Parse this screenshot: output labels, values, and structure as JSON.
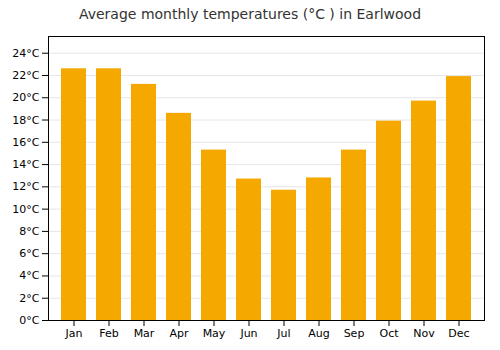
{
  "chart_data": {
    "type": "bar",
    "title": "Average monthly temperatures (°C ) in Earlwood",
    "categories": [
      "Jan",
      "Feb",
      "Mar",
      "Apr",
      "May",
      "Jun",
      "Jul",
      "Aug",
      "Sep",
      "Oct",
      "Nov",
      "Dec"
    ],
    "values": [
      22.6,
      22.6,
      21.2,
      18.6,
      15.3,
      12.7,
      11.7,
      12.8,
      15.3,
      17.9,
      19.7,
      21.9
    ],
    "color": "#F5A800",
    "ylim": [
      0,
      25.5
    ],
    "yticks": [
      {
        "value": 0,
        "label": "0°C"
      },
      {
        "value": 2,
        "label": "2°C"
      },
      {
        "value": 4,
        "label": "4°C"
      },
      {
        "value": 6,
        "label": "6°C"
      },
      {
        "value": 8,
        "label": "8°C"
      },
      {
        "value": 10,
        "label": "10°C"
      },
      {
        "value": 12,
        "label": "12°C"
      },
      {
        "value": 14,
        "label": "14°C"
      },
      {
        "value": 16,
        "label": "16°C"
      },
      {
        "value": 18,
        "label": "18°C"
      },
      {
        "value": 20,
        "label": "20°C"
      },
      {
        "value": 22,
        "label": "22°C"
      },
      {
        "value": 24,
        "label": "24°C"
      }
    ],
    "grid": true
  }
}
